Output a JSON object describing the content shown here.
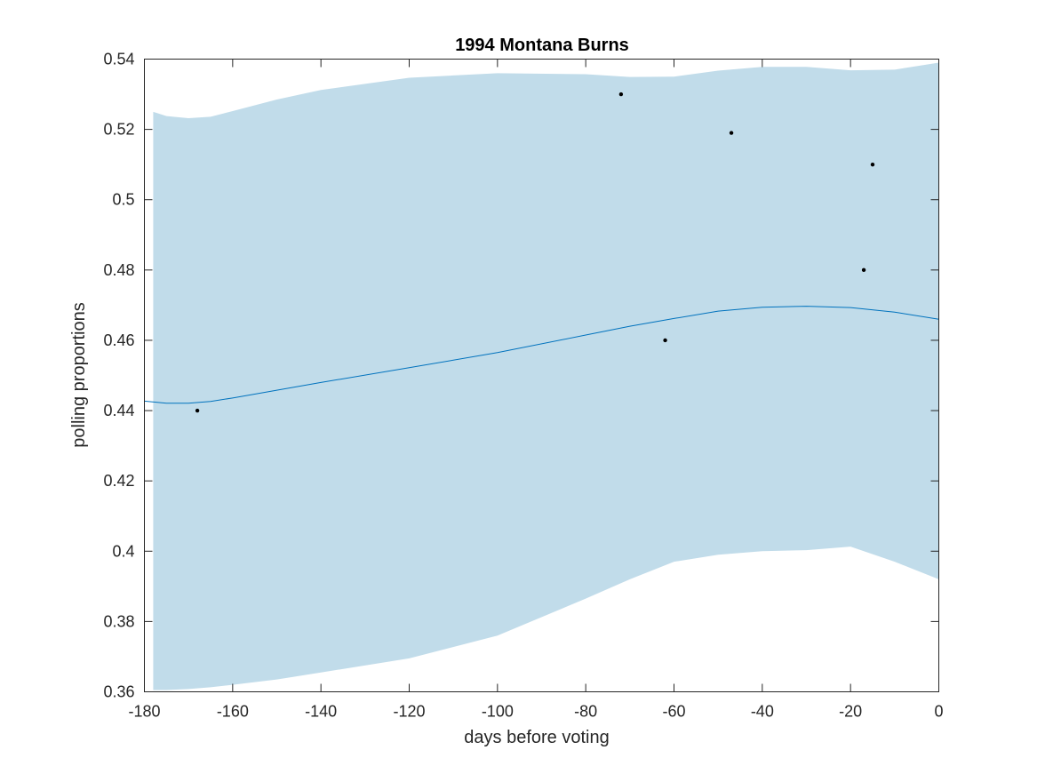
{
  "chart_data": {
    "type": "line",
    "title": "1994 Montana Burns",
    "xlabel": "days before voting",
    "ylabel": "polling proportions",
    "xlim": [
      -180,
      0
    ],
    "ylim": [
      0.36,
      0.54
    ],
    "xticks": [
      -180,
      -160,
      -140,
      -120,
      -100,
      -80,
      -60,
      -40,
      -20,
      0
    ],
    "xtick_labels": [
      "-180",
      "-160",
      "-140",
      "-120",
      "-100",
      "-80",
      "-60",
      "-40",
      "-20",
      "0"
    ],
    "yticks": [
      0.36,
      0.38,
      0.4,
      0.42,
      0.44,
      0.46,
      0.48,
      0.5,
      0.52,
      0.54
    ],
    "ytick_labels": [
      "0.36",
      "0.38",
      "0.4",
      "0.42",
      "0.44",
      "0.46",
      "0.48",
      "0.5",
      "0.52",
      "0.54"
    ],
    "grid": false,
    "colors": {
      "band": "#c1dcea",
      "line": "#0072bd",
      "points": "#000000",
      "axes": "#262626"
    },
    "band": {
      "x": [
        -178,
        -175,
        -170,
        -165,
        -160,
        -150,
        -140,
        -120,
        -100,
        -80,
        -70,
        -60,
        -50,
        -40,
        -30,
        -20,
        -10,
        0
      ],
      "upper": [
        0.525,
        0.5238,
        0.5232,
        0.5236,
        0.5252,
        0.5285,
        0.5312,
        0.5347,
        0.536,
        0.5357,
        0.5349,
        0.535,
        0.5367,
        0.5378,
        0.5378,
        0.5368,
        0.537,
        0.539
      ],
      "lower": [
        0.3605,
        0.3605,
        0.3608,
        0.3613,
        0.362,
        0.3635,
        0.3655,
        0.3695,
        0.376,
        0.3865,
        0.392,
        0.397,
        0.399,
        0.4,
        0.4003,
        0.4013,
        0.397,
        0.392
      ]
    },
    "mean_line": {
      "x": [
        -180,
        -175,
        -170,
        -165,
        -160,
        -150,
        -140,
        -120,
        -100,
        -80,
        -70,
        -60,
        -50,
        -40,
        -30,
        -20,
        -10,
        0
      ],
      "y": [
        0.4427,
        0.4421,
        0.4421,
        0.4426,
        0.4436,
        0.4458,
        0.448,
        0.4522,
        0.4565,
        0.4615,
        0.464,
        0.4662,
        0.4683,
        0.4694,
        0.4697,
        0.4693,
        0.468,
        0.466
      ]
    },
    "points": [
      {
        "x": -168,
        "y": 0.44
      },
      {
        "x": -72,
        "y": 0.53
      },
      {
        "x": -62,
        "y": 0.46
      },
      {
        "x": -47,
        "y": 0.519
      },
      {
        "x": -17,
        "y": 0.48
      },
      {
        "x": -15,
        "y": 0.51
      }
    ]
  }
}
